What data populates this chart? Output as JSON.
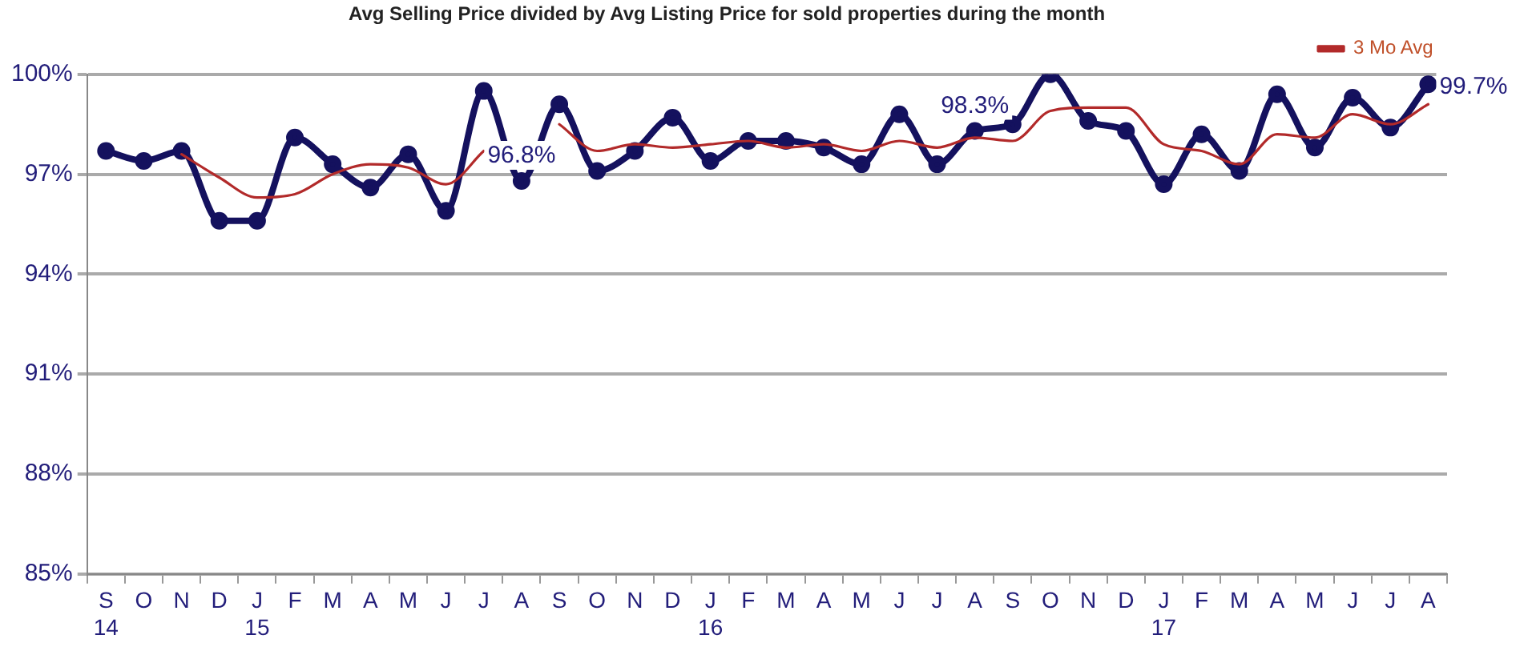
{
  "chart_data": {
    "type": "line",
    "title": "Avg Selling Price divided by Avg Listing Price for sold properties during the month",
    "categories": [
      "S\n14",
      "O",
      "N",
      "D",
      "J\n15",
      "F",
      "M",
      "A",
      "M",
      "J",
      "J",
      "A",
      "S",
      "O",
      "N",
      "D",
      "J\n16",
      "F",
      "M",
      "A",
      "M",
      "J",
      "J",
      "A",
      "S",
      "O",
      "N",
      "D",
      "J\n17",
      "F",
      "M",
      "A",
      "M",
      "J",
      "J",
      "A"
    ],
    "series": [
      {
        "color": "#14115e",
        "marker": "circle",
        "values": [
          97.7,
          97.4,
          97.7,
          95.6,
          95.6,
          98.1,
          97.3,
          96.6,
          97.6,
          95.9,
          99.5,
          96.8,
          99.1,
          97.1,
          97.7,
          98.7,
          97.4,
          98.0,
          98.0,
          97.8,
          97.3,
          98.8,
          97.3,
          98.3,
          98.5,
          100.0,
          98.6,
          98.3,
          96.7,
          98.2,
          97.1,
          99.4,
          97.8,
          99.3,
          98.4,
          99.7
        ],
        "value_labels": [
          null,
          null,
          null,
          null,
          null,
          null,
          null,
          null,
          null,
          null,
          null,
          "96.8%",
          null,
          null,
          null,
          null,
          null,
          null,
          null,
          null,
          null,
          null,
          null,
          "98.3%",
          null,
          null,
          null,
          null,
          null,
          null,
          null,
          null,
          null,
          null,
          null,
          "99.7%"
        ]
      },
      {
        "name": "3 Mo Avg",
        "color": "#b22a2a",
        "marker": "none",
        "values": [
          null,
          null,
          97.6,
          96.9,
          96.3,
          96.4,
          97.0,
          97.3,
          97.2,
          96.7,
          97.7,
          null,
          98.5,
          97.7,
          97.9,
          97.8,
          97.9,
          98.0,
          97.8,
          97.9,
          97.7,
          98.0,
          97.8,
          98.1,
          98.0,
          98.9,
          99.0,
          99.0,
          97.9,
          97.7,
          97.3,
          98.2,
          98.1,
          98.8,
          98.5,
          99.1
        ]
      }
    ],
    "ylim": [
      85,
      100
    ],
    "yticks": [
      {
        "value": 85,
        "label": "85%"
      },
      {
        "value": 88,
        "label": "88%"
      },
      {
        "value": 91,
        "label": "91%"
      },
      {
        "value": 94,
        "label": "94%"
      },
      {
        "value": 97,
        "label": "97%"
      },
      {
        "value": 100,
        "label": "100%"
      }
    ],
    "grid": "y",
    "legend": "top right"
  }
}
